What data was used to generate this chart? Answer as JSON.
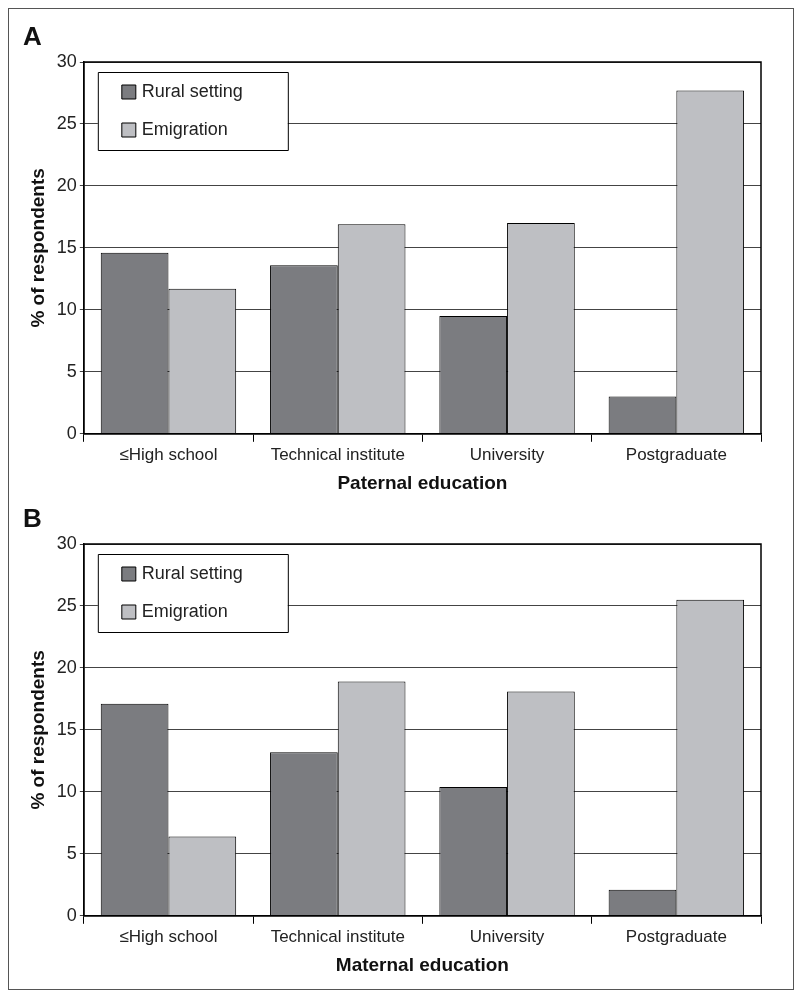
{
  "chart_data": [
    {
      "type": "bar",
      "title": "A",
      "xlabel": "Paternal education",
      "ylabel": "% of respondents",
      "categories": [
        "≤High school",
        "Technical institute",
        "University",
        "Postgraduate"
      ],
      "series": [
        {
          "name": "Rural setting",
          "color": "#7b7c80",
          "values": [
            14.6,
            13.6,
            9.5,
            3.0
          ]
        },
        {
          "name": "Emigration",
          "color": "#bebfc3",
          "values": [
            11.7,
            16.9,
            17.0,
            27.7
          ]
        }
      ],
      "ylim": [
        0,
        30
      ],
      "yticks": [
        0,
        5,
        10,
        15,
        20,
        25,
        30
      ],
      "grid": "y",
      "legend": "top left"
    },
    {
      "type": "bar",
      "title": "B",
      "xlabel": "Maternal education",
      "ylabel": "% of respondents",
      "categories": [
        "≤High school",
        "Technical institute",
        "University",
        "Postgraduate"
      ],
      "series": [
        {
          "name": "Rural setting",
          "color": "#7b7c80",
          "values": [
            17.1,
            13.2,
            10.4,
            2.1
          ]
        },
        {
          "name": "Emigration",
          "color": "#bebfc3",
          "values": [
            6.4,
            18.9,
            18.1,
            25.5
          ]
        }
      ],
      "ylim": [
        0,
        30
      ],
      "yticks": [
        0,
        5,
        10,
        15,
        20,
        25,
        30
      ],
      "grid": "y",
      "legend": "top left"
    }
  ]
}
